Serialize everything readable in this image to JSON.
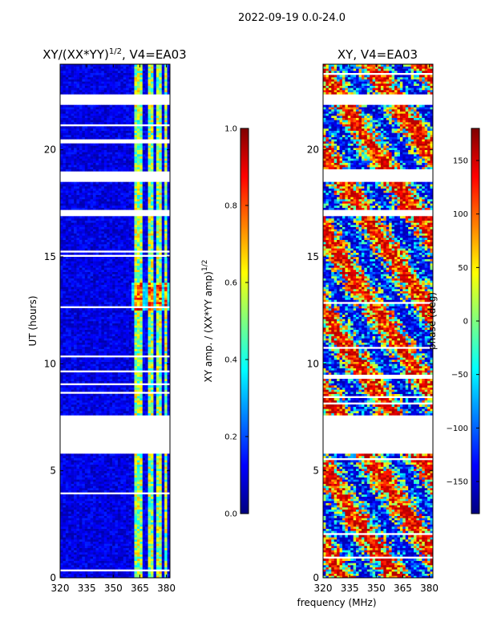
{
  "figure_title": "2022-09-19 0.0-24.0",
  "xlabel_shared": "frequency (MHz)",
  "colors": {
    "jet": [
      "#00007f",
      "#0000ff",
      "#007fff",
      "#00ffff",
      "#7fff7f",
      "#ffff00",
      "#ff7f00",
      "#ff0000",
      "#7f0000"
    ],
    "background": "#ffffff"
  },
  "chart_data": [
    {
      "type": "heatmap",
      "title": "XY/(XX*YY)^{1/2}, V4=EA03",
      "title_base": "XY/(XX*YY)",
      "title_sup": "1/2",
      "title_tail": ", V4=EA03",
      "xlabel": "",
      "ylabel": "UT (hours)",
      "xlim": [
        320,
        382
      ],
      "ylim": [
        0,
        24
      ],
      "xticks": [
        "320",
        "335",
        "350",
        "365",
        "380"
      ],
      "xtick_values": [
        320,
        335,
        350,
        365,
        380
      ],
      "yticks": [
        "0",
        "5",
        "10",
        "15",
        "20"
      ],
      "ytick_values": [
        0,
        5,
        10,
        15,
        20
      ],
      "data_gaps_hours": [
        [
          5.8,
          7.6
        ],
        [
          16.9,
          17.2
        ],
        [
          18.5,
          19.0
        ],
        [
          22.1,
          22.6
        ]
      ],
      "bright_bands_mhz": [
        [
          362,
          366
        ],
        [
          370,
          372
        ],
        [
          375,
          377
        ],
        [
          379,
          381
        ]
      ],
      "colorbar": {
        "label": "XY amp. / (XX*YY amp)^{1/2}",
        "label_base": "XY amp. / (XX*YY amp)",
        "label_sup": "1/2",
        "range": [
          0.0,
          1.0
        ],
        "ticks": [
          "0.0",
          "0.2",
          "0.4",
          "0.6",
          "0.8",
          "1.0"
        ],
        "tick_values": [
          0.0,
          0.2,
          0.4,
          0.6,
          0.8,
          1.0
        ]
      }
    },
    {
      "type": "heatmap",
      "title": "XY, V4=EA03",
      "xlabel": "frequency (MHz)",
      "ylabel": "",
      "xlim": [
        320,
        382
      ],
      "ylim": [
        0,
        24
      ],
      "xticks": [
        "320",
        "335",
        "350",
        "365",
        "380"
      ],
      "xtick_values": [
        320,
        335,
        350,
        365,
        380
      ],
      "yticks": [
        "0",
        "5",
        "10",
        "15",
        "20"
      ],
      "ytick_values": [
        0,
        5,
        10,
        15,
        20
      ],
      "data_gaps_hours": [
        [
          5.8,
          7.6
        ],
        [
          16.9,
          17.2
        ],
        [
          18.5,
          19.0
        ],
        [
          22.1,
          22.6
        ]
      ],
      "colorbar": {
        "label": "phase (deg)",
        "range": [
          -180,
          180
        ],
        "ticks": [
          "−150",
          "−100",
          "−50",
          "0",
          "50",
          "100",
          "150"
        ],
        "tick_values": [
          -150,
          -100,
          -50,
          0,
          50,
          100,
          150
        ]
      }
    }
  ]
}
